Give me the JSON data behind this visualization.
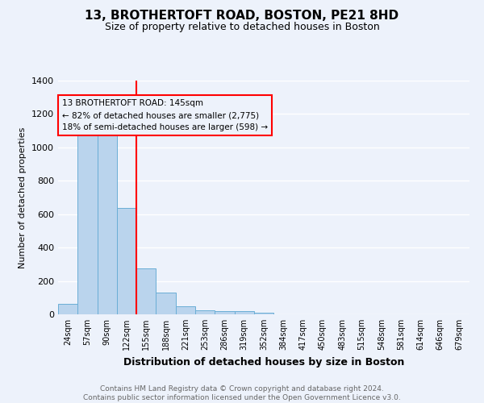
{
  "title_line1": "13, BROTHERTOFT ROAD, BOSTON, PE21 8HD",
  "title_line2": "Size of property relative to detached houses in Boston",
  "xlabel": "Distribution of detached houses by size in Boston",
  "ylabel": "Number of detached properties",
  "footnote": "Contains HM Land Registry data © Crown copyright and database right 2024.\nContains public sector information licensed under the Open Government Licence v3.0.",
  "bar_labels": [
    "24sqm",
    "57sqm",
    "90sqm",
    "122sqm",
    "155sqm",
    "188sqm",
    "221sqm",
    "253sqm",
    "286sqm",
    "319sqm",
    "352sqm",
    "384sqm",
    "417sqm",
    "450sqm",
    "483sqm",
    "515sqm",
    "548sqm",
    "581sqm",
    "614sqm",
    "646sqm",
    "679sqm"
  ],
  "bar_values": [
    65,
    1070,
    1155,
    635,
    275,
    130,
    48,
    22,
    20,
    20,
    10,
    0,
    0,
    0,
    0,
    0,
    0,
    0,
    0,
    0,
    0
  ],
  "bar_color": "#bad4ed",
  "bar_edge_color": "#6aaed6",
  "red_line_index": 4,
  "ylim": [
    0,
    1400
  ],
  "yticks": [
    0,
    200,
    400,
    600,
    800,
    1000,
    1200,
    1400
  ],
  "annotation_box_text": "13 BROTHERTOFT ROAD: 145sqm\n← 82% of detached houses are smaller (2,775)\n18% of semi-detached houses are larger (598) →",
  "background_color": "#edf2fb",
  "grid_color": "#ffffff",
  "title_fontsize": 11,
  "subtitle_fontsize": 9,
  "xlabel_fontsize": 9,
  "ylabel_fontsize": 8,
  "footnote_color": "#666666"
}
